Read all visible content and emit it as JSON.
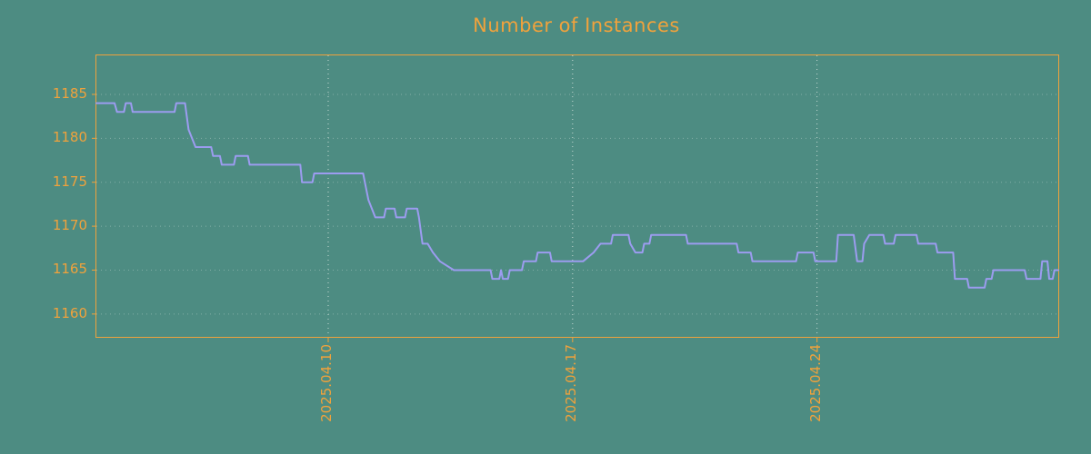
{
  "chart_data": {
    "type": "line",
    "title": "Number of Instances",
    "xlabel": "",
    "ylabel": "",
    "x_unit": "day of month, April 2025",
    "xlim": [
      3.36,
      30.91
    ],
    "ylim": [
      1157.4,
      1189.44
    ],
    "grid": true,
    "legend_position": "none",
    "xticks": [
      {
        "value": 10,
        "label": "2025.04.10"
      },
      {
        "value": 17,
        "label": "2025.04.17"
      },
      {
        "value": 24,
        "label": "2025.04.24"
      }
    ],
    "yticks": [
      {
        "value": 1160,
        "label": "1160"
      },
      {
        "value": 1165,
        "label": "1165"
      },
      {
        "value": 1170,
        "label": "1170"
      },
      {
        "value": 1175,
        "label": "1175"
      },
      {
        "value": 1180,
        "label": "1180"
      },
      {
        "value": 1185,
        "label": "1185"
      }
    ],
    "colors": {
      "background": "#4d8c82",
      "text": "#f0a23c",
      "border": "#f0a23c",
      "grid": "#e6efe9",
      "line": "#9c9cf0"
    },
    "series": [
      {
        "name": "instances",
        "color": "#9c9cf0",
        "points": [
          [
            3.36,
            1184
          ],
          [
            3.88,
            1184
          ],
          [
            3.95,
            1183
          ],
          [
            4.15,
            1183
          ],
          [
            4.2,
            1184
          ],
          [
            4.35,
            1184
          ],
          [
            4.4,
            1183
          ],
          [
            5.6,
            1183
          ],
          [
            5.65,
            1184
          ],
          [
            5.9,
            1184
          ],
          [
            6.0,
            1181
          ],
          [
            6.2,
            1179
          ],
          [
            6.65,
            1179
          ],
          [
            6.7,
            1178
          ],
          [
            6.9,
            1178
          ],
          [
            6.95,
            1177
          ],
          [
            7.3,
            1177
          ],
          [
            7.35,
            1178
          ],
          [
            7.7,
            1178
          ],
          [
            7.75,
            1177
          ],
          [
            9.2,
            1177
          ],
          [
            9.25,
            1175
          ],
          [
            9.55,
            1175
          ],
          [
            9.6,
            1176
          ],
          [
            11.0,
            1176
          ],
          [
            11.05,
            1175
          ],
          [
            11.15,
            1173
          ],
          [
            11.35,
            1171
          ],
          [
            11.6,
            1171
          ],
          [
            11.65,
            1172
          ],
          [
            11.9,
            1172
          ],
          [
            11.95,
            1171
          ],
          [
            12.2,
            1171
          ],
          [
            12.25,
            1172
          ],
          [
            12.55,
            1172
          ],
          [
            12.6,
            1171
          ],
          [
            12.7,
            1168
          ],
          [
            12.85,
            1168
          ],
          [
            13.0,
            1167
          ],
          [
            13.2,
            1166
          ],
          [
            13.6,
            1165
          ],
          [
            14.65,
            1165
          ],
          [
            14.7,
            1164
          ],
          [
            14.9,
            1164
          ],
          [
            14.95,
            1165
          ],
          [
            15.0,
            1164
          ],
          [
            15.15,
            1164
          ],
          [
            15.2,
            1165
          ],
          [
            15.55,
            1165
          ],
          [
            15.6,
            1166
          ],
          [
            15.95,
            1166
          ],
          [
            16.0,
            1167
          ],
          [
            16.35,
            1167
          ],
          [
            16.4,
            1166
          ],
          [
            17.3,
            1166
          ],
          [
            17.6,
            1167
          ],
          [
            17.8,
            1168
          ],
          [
            18.1,
            1168
          ],
          [
            18.15,
            1169
          ],
          [
            18.6,
            1169
          ],
          [
            18.65,
            1168
          ],
          [
            18.8,
            1167
          ],
          [
            19.0,
            1167
          ],
          [
            19.05,
            1168
          ],
          [
            19.2,
            1168
          ],
          [
            19.25,
            1169
          ],
          [
            20.25,
            1169
          ],
          [
            20.3,
            1168
          ],
          [
            21.7,
            1168
          ],
          [
            21.75,
            1167
          ],
          [
            22.1,
            1167
          ],
          [
            22.15,
            1166
          ],
          [
            23.4,
            1166
          ],
          [
            23.45,
            1167
          ],
          [
            23.9,
            1167
          ],
          [
            23.95,
            1166
          ],
          [
            24.55,
            1166
          ],
          [
            24.6,
            1169
          ],
          [
            25.05,
            1169
          ],
          [
            25.15,
            1166
          ],
          [
            25.3,
            1166
          ],
          [
            25.35,
            1168
          ],
          [
            25.5,
            1169
          ],
          [
            25.9,
            1169
          ],
          [
            25.95,
            1168
          ],
          [
            26.2,
            1168
          ],
          [
            26.25,
            1169
          ],
          [
            26.85,
            1169
          ],
          [
            26.9,
            1168
          ],
          [
            27.4,
            1168
          ],
          [
            27.45,
            1167
          ],
          [
            27.9,
            1167
          ],
          [
            27.95,
            1164
          ],
          [
            28.3,
            1164
          ],
          [
            28.35,
            1163
          ],
          [
            28.8,
            1163
          ],
          [
            28.85,
            1164
          ],
          [
            29.0,
            1164
          ],
          [
            29.05,
            1165
          ],
          [
            29.95,
            1165
          ],
          [
            30.0,
            1164
          ],
          [
            30.4,
            1164
          ],
          [
            30.45,
            1166
          ],
          [
            30.6,
            1166
          ],
          [
            30.65,
            1164
          ],
          [
            30.75,
            1164
          ],
          [
            30.8,
            1165
          ],
          [
            30.91,
            1165
          ]
        ]
      }
    ]
  }
}
